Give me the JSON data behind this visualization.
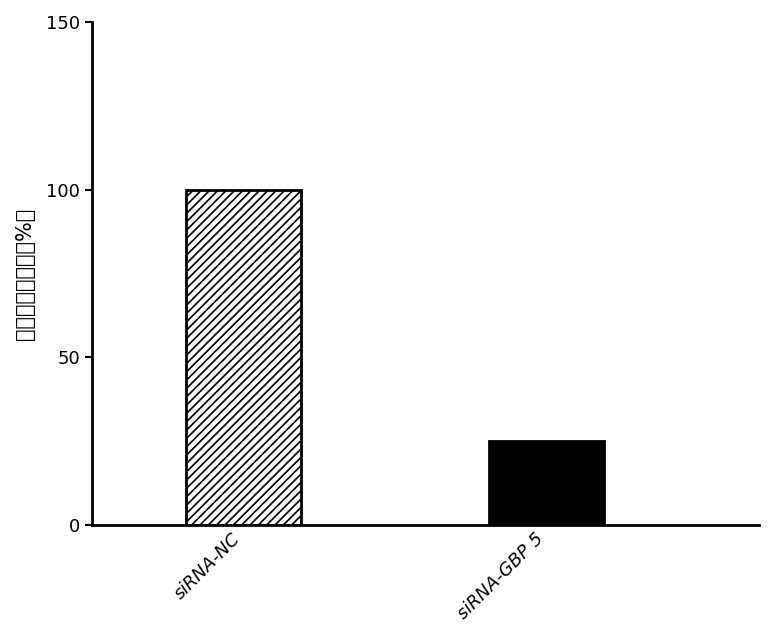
{
  "categories": [
    "siRNA-NC",
    "siRNA-GBP 5"
  ],
  "values": [
    100,
    25
  ],
  "bar_width": 0.38,
  "bar_positions": [
    1,
    2
  ],
  "xlim": [
    0.5,
    2.7
  ],
  "ylim": [
    0,
    150
  ],
  "yticks": [
    0,
    50,
    100,
    150
  ],
  "ylabel": "蛋白相对表达量（%）",
  "ylabel_fontsize": 15,
  "xtick_fontsize": 13,
  "ytick_fontsize": 13,
  "background_color": "#ffffff",
  "bar_edge_color": "#000000",
  "hatch_patterns": [
    "////",
    ""
  ],
  "bar_face_colors": [
    "white",
    "black"
  ],
  "spine_linewidth": 2.0,
  "hatch_linewidth": 1.2
}
